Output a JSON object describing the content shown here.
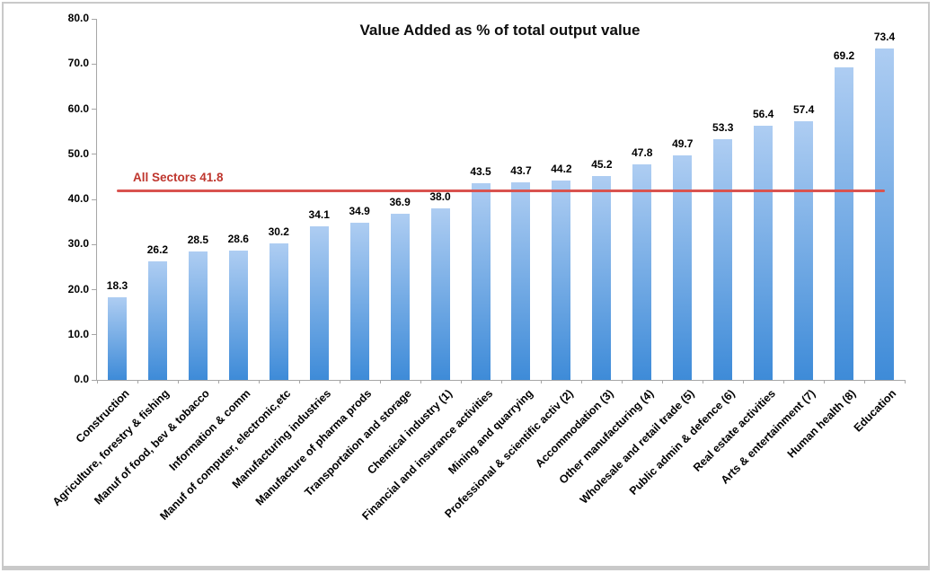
{
  "chart_data": {
    "type": "bar",
    "title": "Value Added as % of total output value",
    "categories": [
      "Construction",
      "Agriculture, forestry & fishing",
      "Manuf of food, bev & tobacco",
      "Information & comm",
      "Manuf of computer, electronic,etc",
      "Manufacturing industries",
      "Manufacture of pharma prods",
      "Transportation and storage",
      "Chemical industry (1)",
      "Financial and insurance activities",
      "Mining and quarrying",
      "Professional & scientific activ (2)",
      "Accommodation (3)",
      "Other manufacturing (4)",
      "Wholesale and retail trade (5)",
      "Public admin & defence (6)",
      "Real estate activities",
      "Arts & entertainment (7)",
      "Human health (8)",
      "Education"
    ],
    "values": [
      18.3,
      26.2,
      28.5,
      28.6,
      30.2,
      34.1,
      34.9,
      36.9,
      38.0,
      43.5,
      43.7,
      44.2,
      45.2,
      47.8,
      49.7,
      53.3,
      56.4,
      57.4,
      69.2,
      73.4
    ],
    "value_label_format": "one_decimal",
    "reference_line": {
      "label": "All Sectors 41.8",
      "value": 41.8,
      "line_color": "#d9534f",
      "label_color": "#bf362e"
    },
    "xlabel": "",
    "ylabel": "",
    "ylim": [
      0,
      80
    ],
    "ytick_step": 10,
    "ytick_labels": [
      "0.0",
      "10.0",
      "20.0",
      "30.0",
      "40.0",
      "50.0",
      "60.0",
      "70.0",
      "80.0"
    ],
    "grid": "off",
    "legend": "none",
    "colors": {
      "bar_gradient_top": "#aecdf2",
      "bar_gradient_bottom": "#3e8bd8",
      "axis": "#a6a6a6",
      "title_text": "#0d0d0d",
      "label_text": "#000000",
      "frame_border": "#c9c9c9"
    }
  }
}
